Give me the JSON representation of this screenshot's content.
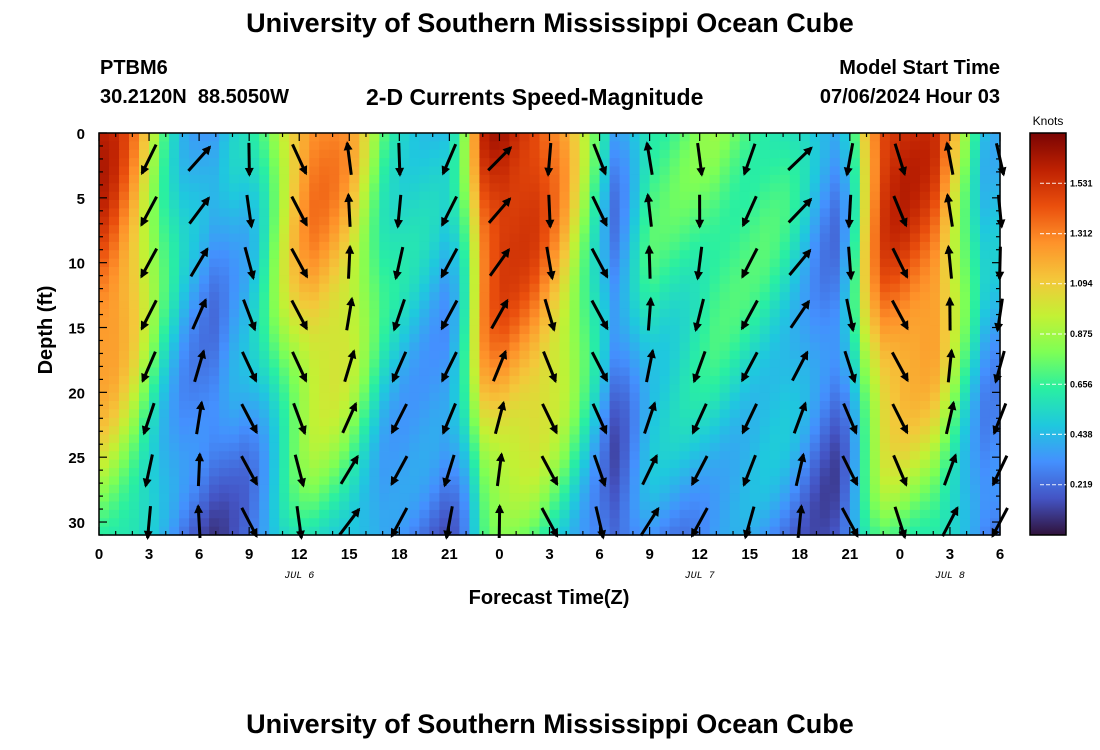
{
  "header": {
    "title": "University of Southern Mississippi Ocean Cube",
    "station": "PTBM6",
    "coords": "30.2120N  88.5050W",
    "subtitle": "2-D Currents Speed-Magnitude",
    "start_label": "Model Start Time",
    "start_value": "07/06/2024 Hour 03"
  },
  "footer": {
    "title": "University of Southern Mississippi Ocean Cube"
  },
  "chart_data": {
    "type": "heatmap",
    "title": "2-D Currents Speed-Magnitude",
    "xlabel": "Forecast Time(Z)",
    "ylabel": "Depth (ft)",
    "x_tick_labels": [
      "0",
      "3",
      "6",
      "9",
      "12",
      "15",
      "18",
      "21",
      "0",
      "3",
      "6",
      "9",
      "12",
      "15",
      "18",
      "21",
      "0",
      "3",
      "6"
    ],
    "x_ticks_hours": [
      0,
      3,
      6,
      9,
      12,
      15,
      18,
      21,
      24,
      27,
      30,
      33,
      36,
      39,
      42,
      45,
      48,
      51,
      54
    ],
    "date_labels": [
      {
        "text": "JUL 6",
        "hour": 12
      },
      {
        "text": "JUL 7",
        "hour": 36
      },
      {
        "text": "JUL 8",
        "hour": 51
      }
    ],
    "xlim_hours": [
      0,
      54
    ],
    "y_ticks": [
      0,
      5,
      10,
      15,
      20,
      25,
      30
    ],
    "ylim": [
      0,
      31
    ],
    "y_inverted": true,
    "colorbar": {
      "label": "Knots",
      "ticks": [
        1.531,
        1.312,
        1.094,
        0.875,
        0.656,
        0.438,
        0.219
      ],
      "range": [
        0,
        1.75
      ],
      "colors": [
        "#30123b",
        "#4454c4",
        "#4490fe",
        "#1fc8de",
        "#29efa2",
        "#7eff55",
        "#c3f134",
        "#f4c73a",
        "#fe922a",
        "#ea4f0d",
        "#be2102",
        "#7a0403"
      ]
    },
    "speed_profile_hours": [
      0,
      1,
      2,
      3,
      4,
      5,
      6,
      7,
      8,
      9,
      10,
      11,
      12,
      13,
      14,
      15,
      16,
      17,
      18,
      19,
      20,
      21,
      22,
      23,
      24,
      25,
      26,
      27,
      28,
      29,
      30,
      31,
      32,
      33,
      34,
      35,
      36,
      37,
      38,
      39,
      40,
      41,
      42,
      43,
      44,
      45,
      46,
      47,
      48,
      49,
      50,
      51,
      52,
      53,
      54
    ],
    "speed_profile_knots": [
      1.6,
      1.5,
      1.3,
      1.0,
      0.7,
      0.5,
      0.4,
      0.35,
      0.45,
      0.5,
      0.7,
      1.0,
      1.25,
      1.35,
      1.3,
      1.2,
      0.95,
      0.7,
      0.6,
      0.55,
      0.5,
      0.45,
      0.8,
      1.5,
      1.65,
      1.6,
      1.55,
      1.4,
      1.2,
      0.9,
      0.6,
      0.3,
      0.5,
      0.7,
      0.7,
      0.72,
      0.75,
      0.78,
      0.75,
      0.72,
      0.7,
      0.65,
      0.55,
      0.4,
      0.3,
      0.5,
      1.2,
      1.55,
      1.6,
      1.55,
      1.5,
      1.2,
      0.8,
      0.5,
      0.45
    ],
    "arrow_hours": [
      3,
      6,
      9,
      12,
      15,
      18,
      21,
      24,
      27,
      30,
      33,
      36,
      39,
      42,
      45,
      48,
      51,
      54
    ],
    "arrow_depths": [
      2,
      6,
      10,
      14,
      18,
      22,
      26,
      30
    ]
  }
}
